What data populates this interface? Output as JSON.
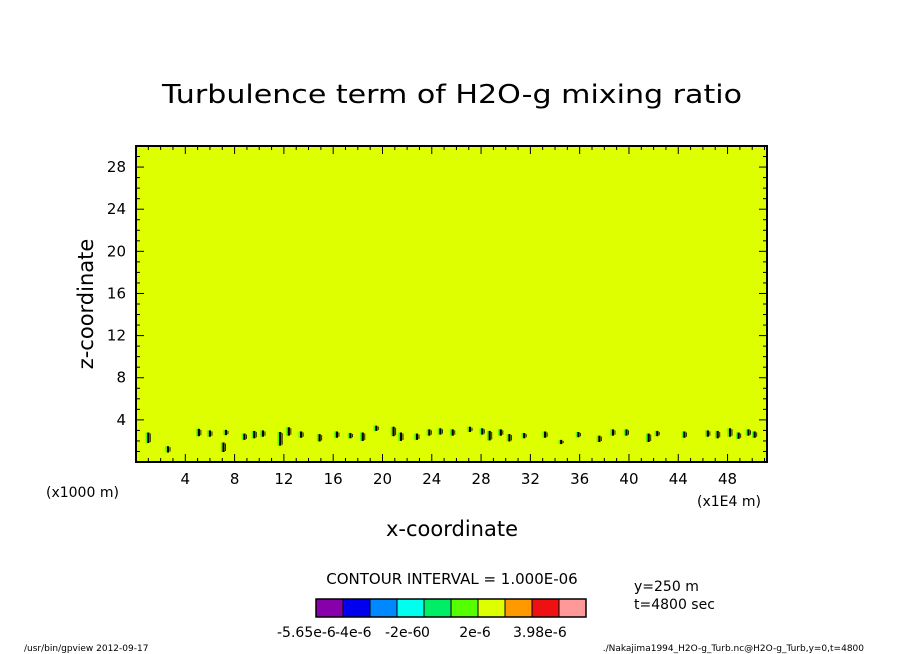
{
  "chart_data": {
    "type": "heatmap",
    "title": "Turbulence term of H2O-g mixing ratio",
    "xlabel": "x-coordinate",
    "ylabel": "z-coordinate",
    "x_unit_left": "(x1000 m)",
    "x_unit_right": "(x1E4 m)",
    "xlim": [
      0,
      51.2
    ],
    "ylim": [
      0,
      30
    ],
    "x_ticks": [
      4,
      8,
      12,
      16,
      20,
      24,
      28,
      32,
      36,
      40,
      44,
      48
    ],
    "y_ticks": [
      4,
      8,
      12,
      16,
      20,
      24,
      28
    ],
    "background_level_color": "#ddff00",
    "contour_interval_text": "CONTOUR INTERVAL = 1.000E-06",
    "colorbar": {
      "colors": [
        "#8800aa",
        "#0000ee",
        "#0088ff",
        "#00ffee",
        "#00ee66",
        "#55ff00",
        "#ddff00",
        "#ff9900",
        "#ee1111",
        "#ff9999"
      ],
      "labels": [
        "-5.65e-6",
        "-4e-6",
        "-2e-6",
        "0",
        "2e-6",
        "3.98e-6"
      ]
    },
    "perturbations": [
      [
        1,
        2.3,
        1.0
      ],
      [
        2.6,
        1.2,
        0.6
      ],
      [
        5.1,
        2.8,
        0.7
      ],
      [
        6.0,
        2.7,
        0.6
      ],
      [
        7.1,
        1.4,
        0.9
      ],
      [
        7.3,
        2.8,
        0.5
      ],
      [
        8.8,
        2.4,
        0.6
      ],
      [
        9.6,
        2.6,
        0.7
      ],
      [
        10.3,
        2.7,
        0.6
      ],
      [
        11.7,
        2.2,
        1.3
      ],
      [
        12.4,
        2.9,
        0.8
      ],
      [
        13.4,
        2.6,
        0.6
      ],
      [
        14.9,
        2.3,
        0.7
      ],
      [
        16.3,
        2.6,
        0.6
      ],
      [
        17.4,
        2.5,
        0.5
      ],
      [
        18.4,
        2.4,
        0.8
      ],
      [
        19.5,
        3.2,
        0.5
      ],
      [
        20.9,
        2.9,
        0.9
      ],
      [
        21.5,
        2.4,
        0.8
      ],
      [
        22.8,
        2.4,
        0.6
      ],
      [
        23.8,
        2.8,
        0.6
      ],
      [
        24.7,
        2.9,
        0.6
      ],
      [
        25.7,
        2.8,
        0.6
      ],
      [
        27.1,
        3.1,
        0.5
      ],
      [
        28.1,
        2.9,
        0.6
      ],
      [
        28.7,
        2.5,
        0.9
      ],
      [
        29.6,
        2.8,
        0.6
      ],
      [
        30.3,
        2.3,
        0.7
      ],
      [
        31.5,
        2.5,
        0.5
      ],
      [
        33.2,
        2.6,
        0.6
      ],
      [
        34.5,
        1.9,
        0.4
      ],
      [
        35.9,
        2.6,
        0.5
      ],
      [
        37.6,
        2.2,
        0.6
      ],
      [
        38.7,
        2.8,
        0.6
      ],
      [
        39.8,
        2.8,
        0.6
      ],
      [
        41.6,
        2.3,
        0.8
      ],
      [
        42.3,
        2.7,
        0.5
      ],
      [
        44.5,
        2.6,
        0.6
      ],
      [
        46.4,
        2.7,
        0.6
      ],
      [
        47.2,
        2.6,
        0.7
      ],
      [
        48.2,
        2.8,
        0.8
      ],
      [
        48.9,
        2.5,
        0.6
      ],
      [
        49.7,
        2.8,
        0.6
      ],
      [
        50.2,
        2.6,
        0.6
      ]
    ]
  },
  "info": {
    "y_label": "y=250 m",
    "t_label": "t=4800 sec"
  },
  "footer": {
    "left": "/usr/bin/gpview  2012-09-17",
    "right": "./Nakajima1994_H2O-g_Turb.nc@H2O-g_Turb,y=0,t=4800"
  }
}
